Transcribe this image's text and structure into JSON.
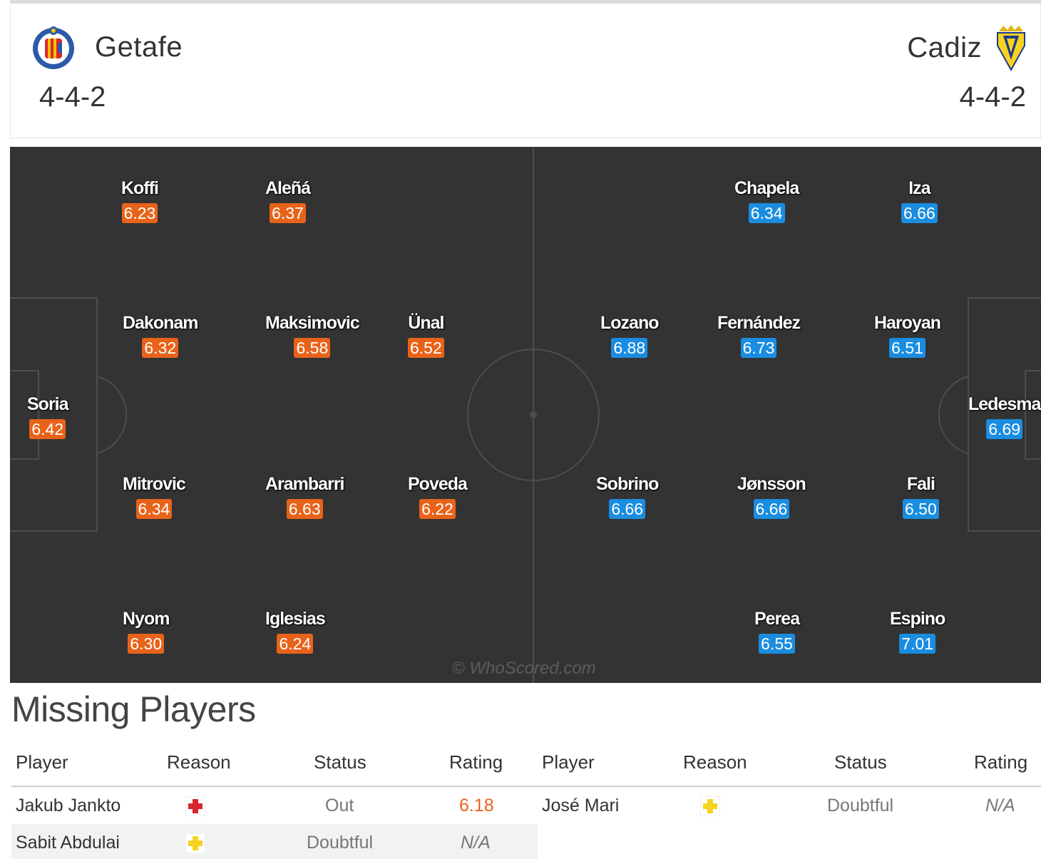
{
  "home": {
    "name": "Getafe",
    "formation": "4-4-2",
    "color": "#e8631a",
    "crest": "getafe-crest-icon"
  },
  "away": {
    "name": "Cadiz",
    "formation": "4-4-2",
    "color": "#1a8de0",
    "crest": "cadiz-crest-icon"
  },
  "pitch": {
    "watermark": "© WhoScored.com",
    "home_players": [
      {
        "name": "Koffi",
        "rating": "6.23"
      },
      {
        "name": "Aleñá",
        "rating": "6.37"
      },
      {
        "name": "Dakonam",
        "rating": "6.32"
      },
      {
        "name": "Maksimovic",
        "rating": "6.58"
      },
      {
        "name": "Ünal",
        "rating": "6.52"
      },
      {
        "name": "Soria",
        "rating": "6.42"
      },
      {
        "name": "Mitrovic",
        "rating": "6.34"
      },
      {
        "name": "Arambarri",
        "rating": "6.63"
      },
      {
        "name": "Poveda",
        "rating": "6.22"
      },
      {
        "name": "Nyom",
        "rating": "6.30"
      },
      {
        "name": "Iglesias",
        "rating": "6.24"
      }
    ],
    "away_players": [
      {
        "name": "Chapela",
        "rating": "6.34"
      },
      {
        "name": "Iza",
        "rating": "6.66"
      },
      {
        "name": "Lozano",
        "rating": "6.88"
      },
      {
        "name": "Fernández",
        "rating": "6.73"
      },
      {
        "name": "Haroyan",
        "rating": "6.51"
      },
      {
        "name": "Ledesma",
        "rating": "6.69"
      },
      {
        "name": "Sobrino",
        "rating": "6.66"
      },
      {
        "name": "Jønsson",
        "rating": "6.66"
      },
      {
        "name": "Fali",
        "rating": "6.50"
      },
      {
        "name": "Perea",
        "rating": "6.55"
      },
      {
        "name": "Espino",
        "rating": "7.01"
      }
    ]
  },
  "missing": {
    "title": "Missing Players",
    "headers": {
      "player": "Player",
      "reason": "Reason",
      "status": "Status",
      "rating": "Rating"
    },
    "home_rows": [
      {
        "player": "Jakub Jankto",
        "reason_icon": "injury-red-cross-icon",
        "status": "Out",
        "rating": "6.18"
      },
      {
        "player": "Sabit Abdulai",
        "reason_icon": "doubtful-yellow-cross-icon",
        "status": "Doubtful",
        "rating": "N/A"
      }
    ],
    "away_rows": [
      {
        "player": "José Mari",
        "reason_icon": "doubtful-yellow-cross-icon",
        "status": "Doubtful",
        "rating": "N/A"
      }
    ]
  }
}
